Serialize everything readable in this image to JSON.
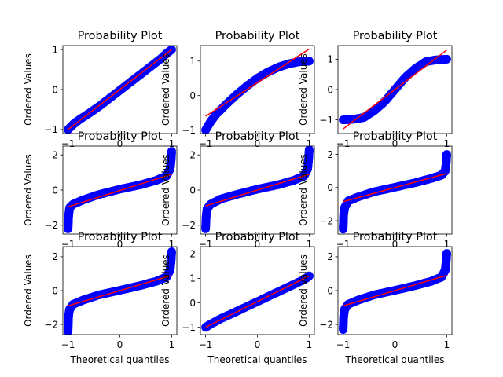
{
  "figure": {
    "background": "#ffffff",
    "marker_color": "#0000ff",
    "fit_line_color": "#ff0000"
  },
  "chart_data": [
    {
      "type": "scatter",
      "title": "Probability Plot",
      "xlabel": "",
      "ylabel": "Ordered Values",
      "xlim": [
        -1.1,
        1.1
      ],
      "ylim": [
        -1.1,
        1.1
      ],
      "xticks": [
        -1,
        0,
        1
      ],
      "yticks": [
        -1,
        0,
        1
      ],
      "points": [
        [
          -1,
          -1
        ],
        [
          -0.9,
          -0.87
        ],
        [
          -0.8,
          -0.77
        ],
        [
          -0.6,
          -0.6
        ],
        [
          -0.4,
          -0.42
        ],
        [
          -0.2,
          -0.22
        ],
        [
          0,
          -0.02
        ],
        [
          0.2,
          0.18
        ],
        [
          0.4,
          0.38
        ],
        [
          0.6,
          0.58
        ],
        [
          0.8,
          0.78
        ],
        [
          0.9,
          0.9
        ],
        [
          1,
          1
        ]
      ],
      "fit_line": [
        [
          -1,
          -1
        ],
        [
          1,
          1
        ]
      ]
    },
    {
      "type": "scatter",
      "title": "Probability Plot",
      "xlabel": "",
      "ylabel": "Ordered Values",
      "xlim": [
        -1.1,
        1.1
      ],
      "ylim": [
        -1.1,
        1.45
      ],
      "xticks": [
        -1,
        0,
        1
      ],
      "yticks": [
        -1,
        0,
        1
      ],
      "points": [
        [
          -1,
          -1
        ],
        [
          -0.9,
          -0.75
        ],
        [
          -0.8,
          -0.55
        ],
        [
          -0.6,
          -0.25
        ],
        [
          -0.4,
          0.03
        ],
        [
          -0.2,
          0.28
        ],
        [
          0,
          0.5
        ],
        [
          0.2,
          0.68
        ],
        [
          0.4,
          0.82
        ],
        [
          0.6,
          0.92
        ],
        [
          0.8,
          0.98
        ],
        [
          0.95,
          1
        ],
        [
          1,
          1
        ]
      ],
      "fit_line": [
        [
          -1,
          -0.6
        ],
        [
          1,
          1.35
        ]
      ]
    },
    {
      "type": "scatter",
      "title": "Probability Plot",
      "xlabel": "",
      "ylabel": "Ordered Values",
      "xlim": [
        -1.1,
        1.1
      ],
      "ylim": [
        -1.45,
        1.45
      ],
      "xticks": [
        -1,
        0,
        1
      ],
      "yticks": [
        -1,
        0,
        1
      ],
      "points": [
        [
          -1,
          -1
        ],
        [
          -0.8,
          -0.98
        ],
        [
          -0.6,
          -0.92
        ],
        [
          -0.4,
          -0.7
        ],
        [
          -0.2,
          -0.4
        ],
        [
          0,
          0
        ],
        [
          0.2,
          0.4
        ],
        [
          0.4,
          0.7
        ],
        [
          0.6,
          0.92
        ],
        [
          0.8,
          0.98
        ],
        [
          1,
          1
        ]
      ],
      "fit_line": [
        [
          -1,
          -1.3
        ],
        [
          1,
          1.3
        ]
      ]
    },
    {
      "type": "scatter",
      "title": "Probability Plot",
      "xlabel": "",
      "ylabel": "Ordered Values",
      "xlim": [
        -1.1,
        1.1
      ],
      "ylim": [
        -2.5,
        2.5
      ],
      "xticks": [
        -1,
        0,
        1
      ],
      "yticks": [
        -2,
        0,
        2
      ],
      "points": [
        [
          -1,
          -2.2
        ],
        [
          -0.99,
          -1.5
        ],
        [
          -0.97,
          -1
        ],
        [
          -0.9,
          -0.8
        ],
        [
          -0.7,
          -0.55
        ],
        [
          -0.4,
          -0.25
        ],
        [
          0,
          0.05
        ],
        [
          0.4,
          0.3
        ],
        [
          0.7,
          0.55
        ],
        [
          0.9,
          0.8
        ],
        [
          0.97,
          1.2
        ],
        [
          0.99,
          1.7
        ],
        [
          1,
          2.2
        ]
      ],
      "fit_line": [
        [
          -1,
          -0.95
        ],
        [
          1,
          0.9
        ]
      ]
    },
    {
      "type": "scatter",
      "title": "Probability Plot",
      "xlabel": "",
      "ylabel": "Ordered Values",
      "xlim": [
        -1.1,
        1.1
      ],
      "ylim": [
        -2.5,
        2.5
      ],
      "xticks": [
        -1,
        0,
        1
      ],
      "yticks": [
        -2,
        0,
        2
      ],
      "points": [
        [
          -1,
          -2.2
        ],
        [
          -0.99,
          -1.5
        ],
        [
          -0.97,
          -1.05
        ],
        [
          -0.9,
          -0.8
        ],
        [
          -0.7,
          -0.5
        ],
        [
          -0.4,
          -0.25
        ],
        [
          0,
          0.05
        ],
        [
          0.4,
          0.3
        ],
        [
          0.7,
          0.55
        ],
        [
          0.9,
          0.8
        ],
        [
          0.97,
          1.2
        ],
        [
          0.99,
          1.8
        ],
        [
          1,
          2.3
        ]
      ],
      "fit_line": [
        [
          -1,
          -0.9
        ],
        [
          1,
          0.9
        ]
      ]
    },
    {
      "type": "scatter",
      "title": "Probability Plot",
      "xlabel": "",
      "ylabel": "Ordered Values",
      "xlim": [
        -1.1,
        1.1
      ],
      "ylim": [
        -2.8,
        2.5
      ],
      "xticks": [
        -1,
        0,
        1
      ],
      "yticks": [
        -2,
        0,
        2
      ],
      "points": [
        [
          -1,
          -2.5
        ],
        [
          -0.99,
          -1.6
        ],
        [
          -0.97,
          -1.2
        ],
        [
          -0.9,
          -0.8
        ],
        [
          -0.7,
          -0.55
        ],
        [
          -0.4,
          -0.25
        ],
        [
          0,
          0.02
        ],
        [
          0.4,
          0.3
        ],
        [
          0.7,
          0.55
        ],
        [
          0.9,
          0.75
        ],
        [
          0.97,
          1
        ],
        [
          0.99,
          1.5
        ],
        [
          1,
          2
        ]
      ],
      "fit_line": [
        [
          -1,
          -0.85
        ],
        [
          1,
          0.85
        ]
      ]
    },
    {
      "type": "scatter",
      "title": "Probability Plot",
      "xlabel": "Theoretical quantiles",
      "ylabel": "Ordered Values",
      "xlim": [
        -1.1,
        1.1
      ],
      "ylim": [
        -2.6,
        2.6
      ],
      "xticks": [
        -1,
        0,
        1
      ],
      "yticks": [
        -2,
        0,
        2
      ],
      "points": [
        [
          -1,
          -2.4
        ],
        [
          -0.99,
          -1.5
        ],
        [
          -0.97,
          -1.1
        ],
        [
          -0.9,
          -0.8
        ],
        [
          -0.7,
          -0.55
        ],
        [
          -0.4,
          -0.25
        ],
        [
          0,
          0.02
        ],
        [
          0.4,
          0.3
        ],
        [
          0.7,
          0.55
        ],
        [
          0.9,
          0.8
        ],
        [
          0.97,
          1.2
        ],
        [
          0.99,
          1.8
        ],
        [
          1,
          2.3
        ]
      ],
      "fit_line": [
        [
          -1,
          -0.9
        ],
        [
          1,
          0.9
        ]
      ]
    },
    {
      "type": "scatter",
      "title": "Probability Plot",
      "xlabel": "Theoretical quantiles",
      "ylabel": "Ordered Values",
      "xlim": [
        -1.1,
        1.1
      ],
      "ylim": [
        -1.3,
        2.3
      ],
      "xticks": [
        -1,
        0,
        1
      ],
      "yticks": [
        -1,
        0,
        1,
        2
      ],
      "points": [
        [
          -1,
          -1
        ],
        [
          -0.9,
          -0.87
        ],
        [
          -0.7,
          -0.64
        ],
        [
          -0.5,
          -0.45
        ],
        [
          -0.3,
          -0.25
        ],
        [
          0,
          0.05
        ],
        [
          0.3,
          0.35
        ],
        [
          0.5,
          0.55
        ],
        [
          0.7,
          0.75
        ],
        [
          0.9,
          0.95
        ],
        [
          0.97,
          1.05
        ],
        [
          1,
          1.1
        ]
      ],
      "fit_line": [
        [
          -1,
          -1
        ],
        [
          1,
          1.1
        ]
      ]
    },
    {
      "type": "scatter",
      "title": "Probability Plot",
      "xlabel": "Theoretical quantiles",
      "ylabel": "Ordered Values",
      "xlim": [
        -1.1,
        1.1
      ],
      "ylim": [
        -2.6,
        2.6
      ],
      "xticks": [
        -1,
        0,
        1
      ],
      "yticks": [
        -2,
        0,
        2
      ],
      "points": [
        [
          -1,
          -2.3
        ],
        [
          -0.99,
          -1.5
        ],
        [
          -0.97,
          -1.1
        ],
        [
          -0.9,
          -0.8
        ],
        [
          -0.7,
          -0.55
        ],
        [
          -0.4,
          -0.25
        ],
        [
          0,
          0.02
        ],
        [
          0.4,
          0.3
        ],
        [
          0.7,
          0.55
        ],
        [
          0.9,
          0.8
        ],
        [
          0.97,
          1.2
        ],
        [
          0.99,
          1.8
        ],
        [
          1,
          2.2
        ]
      ],
      "fit_line": [
        [
          -1,
          -0.9
        ],
        [
          1,
          0.9
        ]
      ]
    }
  ]
}
